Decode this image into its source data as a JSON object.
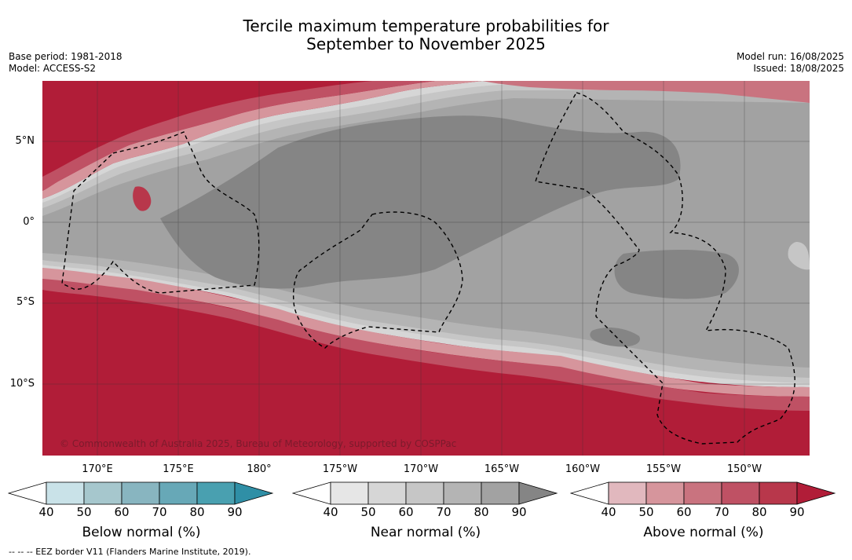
{
  "title_line1": "Tercile maximum temperature probabilities for",
  "title_line2": "September to November 2025",
  "base_period": "Base period: 1981-2018",
  "model": "Model: ACCESS-S2",
  "model_run": "Model run: 16/08/2025",
  "issued": "Issued: 18/08/2025",
  "copyright": "© Commonwealth of Australia 2025, Bureau of Meteorology, supported by COSPPac",
  "footnote": "-- -- -- EEZ border V11 (Flanders Marine Institute, 2019).",
  "lat_labels": [
    "5°N",
    "0°",
    "5°S",
    "10°S"
  ],
  "lon_labels": [
    "170°E",
    "175°E",
    "180°",
    "175°W",
    "170°W",
    "165°W",
    "160°W",
    "155°W",
    "150°W"
  ],
  "colorbars": [
    {
      "title": "Below normal (%)",
      "ticks": [
        "40",
        "50",
        "60",
        "70",
        "80",
        "90"
      ],
      "colors": [
        "#ffffff",
        "#c9e2e8",
        "#a6c7cd",
        "#88b5c0",
        "#67a8b7",
        "#49a0b0",
        "#2f8fa6"
      ]
    },
    {
      "title": "Near normal (%)",
      "ticks": [
        "40",
        "50",
        "60",
        "70",
        "80",
        "90"
      ],
      "colors": [
        "#ffffff",
        "#e6e6e6",
        "#d6d6d6",
        "#c6c6c6",
        "#b4b4b4",
        "#a2a2a2",
        "#858585"
      ]
    },
    {
      "title": "Above normal (%)",
      "ticks": [
        "40",
        "50",
        "60",
        "70",
        "80",
        "90"
      ],
      "colors": [
        "#ffffff",
        "#e1b8be",
        "#d6959c",
        "#c9737f",
        "#bf5164",
        "#b8374b",
        "#b11d38"
      ]
    }
  ],
  "map_colors": {
    "above_90": "#b11d38",
    "above_80": "#b8374b",
    "above_70": "#bf5164",
    "above_60": "#c9737f",
    "above_50": "#d6959c",
    "near_50": "#d6d6d6",
    "near_60": "#c6c6c6",
    "near_70": "#b4b4b4",
    "near_80": "#a2a2a2",
    "near_90": "#858585"
  }
}
